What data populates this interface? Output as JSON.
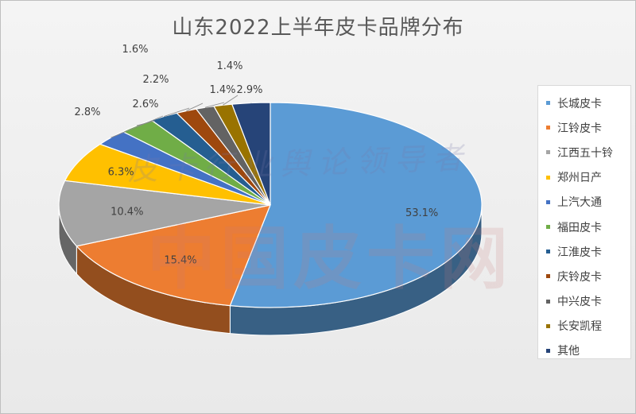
{
  "chart_data": {
    "type": "pie",
    "title": "山东2022上半年皮卡品牌分布",
    "slices": [
      {
        "label": "长城皮卡",
        "value": 53.1,
        "value_label": "53.1%",
        "color": "#5b9bd5"
      },
      {
        "label": "江铃皮卡",
        "value": 15.4,
        "value_label": "15.4%",
        "color": "#ed7d31"
      },
      {
        "label": "江西五十铃",
        "value": 10.4,
        "value_label": "10.4%",
        "color": "#a5a5a5"
      },
      {
        "label": "郑州日产",
        "value": 6.3,
        "value_label": "6.3%",
        "color": "#ffc000"
      },
      {
        "label": "上汽大通",
        "value": 2.6,
        "value_label": "2.6%",
        "color": "#4472c4"
      },
      {
        "label": "福田皮卡",
        "value": 2.8,
        "value_label": "2.8%",
        "color": "#70ad47"
      },
      {
        "label": "江淮皮卡",
        "value": 2.2,
        "value_label": "2.2%",
        "color": "#255e91"
      },
      {
        "label": "庆铃皮卡",
        "value": 1.6,
        "value_label": "1.6%",
        "color": "#9e480e"
      },
      {
        "label": "中兴皮卡",
        "value": 1.4,
        "value_label": "1.4%",
        "color": "#636363"
      },
      {
        "label": "长安凯程",
        "value": 1.4,
        "value_label": "1.4%",
        "color": "#997300"
      },
      {
        "label": "其他",
        "value": 2.9,
        "value_label": "2.9%",
        "color": "#264478"
      }
    ],
    "legend_position": "right",
    "style": "3d-pie"
  },
  "watermark": {
    "line1": "皮卡行业舆论领导者",
    "line2": "中国皮卡网"
  }
}
